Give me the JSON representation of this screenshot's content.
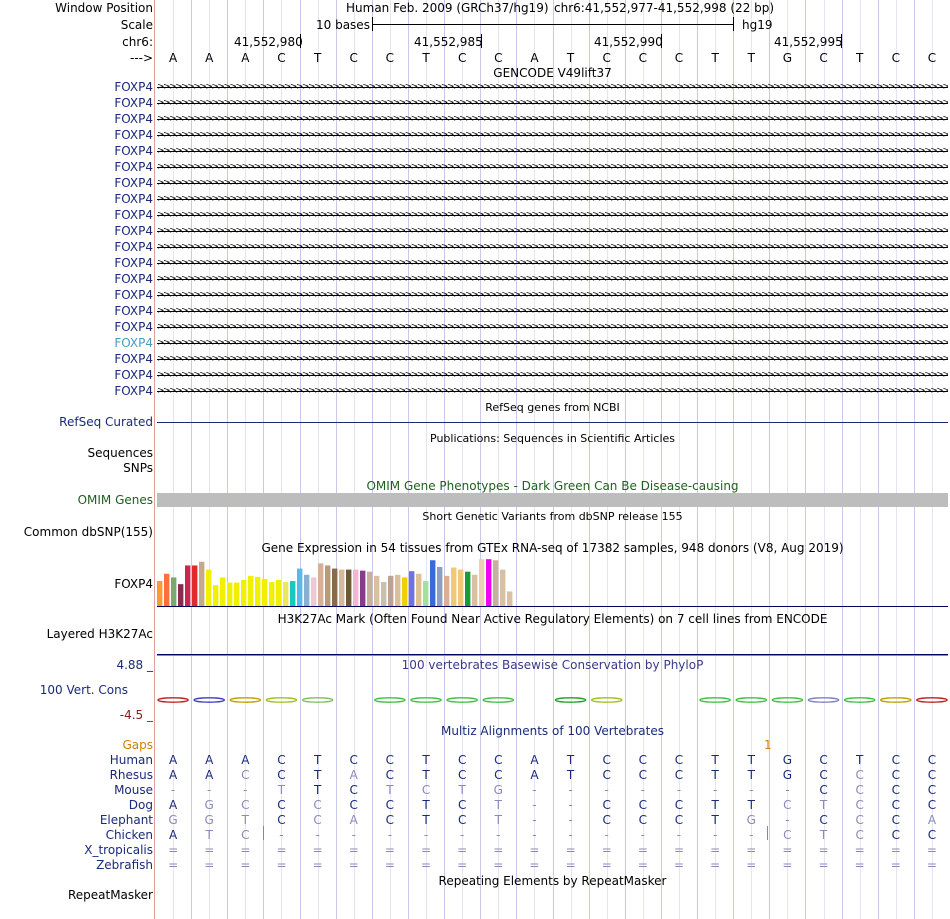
{
  "header": {
    "window_position_label": "Window Position",
    "assembly": "Human Feb. 2009 (GRCh37/hg19)",
    "position": "chr6:41,552,977-41,552,998 (22 bp)",
    "scale_label": "Scale",
    "scale_bases": "10 bases",
    "scale_db": "hg19",
    "chrom_label": "chr6:",
    "ticks": [
      "41,552,980",
      "41,552,985",
      "41,552,990",
      "41,552,995"
    ],
    "strand_label": "--->"
  },
  "sequence": [
    "A",
    "A",
    "A",
    "C",
    "T",
    "C",
    "C",
    "T",
    "C",
    "C",
    "A",
    "T",
    "C",
    "C",
    "C",
    "T",
    "T",
    "G",
    "C",
    "T",
    "C",
    "C"
  ],
  "gencode": {
    "title": "GENCODE V49lift37",
    "gene_labels": [
      "FOXP4",
      "FOXP4",
      "FOXP4",
      "FOXP4",
      "FOXP4",
      "FOXP4",
      "FOXP4",
      "FOXP4",
      "FOXP4",
      "FOXP4",
      "FOXP4",
      "FOXP4",
      "FOXP4",
      "FOXP4",
      "FOXP4",
      "FOXP4",
      "FOXP4",
      "FOXP4",
      "FOXP4",
      "FOXP4"
    ],
    "highlight_index": 16,
    "label_color": "#1a2a7a",
    "highlight_color": "#4a9ac0"
  },
  "refseq": {
    "title": "RefSeq genes from NCBI",
    "label": "RefSeq Curated"
  },
  "publications": {
    "title": "Publications: Sequences in Scientific Articles",
    "label1": "Sequences",
    "label2": "SNPs"
  },
  "omim": {
    "title": "OMIM Gene Phenotypes - Dark Green Can Be Disease-causing",
    "label": "OMIM Genes",
    "color": "#1f5f1f",
    "bar_color": "#bdbdbd"
  },
  "dbsnp": {
    "title": "Short Genetic Variants from dbSNP release 155",
    "label": "Common dbSNP(155)"
  },
  "gtex": {
    "title": "Gene Expression in 54 tissues from GTEx RNA-seq of 17382 samples, 948 donors (V8, Aug 2019)",
    "label": "FOXP4",
    "values": [
      0.48,
      0.62,
      0.55,
      0.42,
      0.78,
      0.78,
      0.85,
      0.7,
      0.4,
      0.55,
      0.45,
      0.45,
      0.5,
      0.58,
      0.56,
      0.52,
      0.46,
      0.5,
      0.46,
      0.48,
      0.72,
      0.6,
      0.55,
      0.82,
      0.78,
      0.72,
      0.7,
      0.7,
      0.7,
      0.68,
      0.66,
      0.58,
      0.46,
      0.58,
      0.6,
      0.55,
      0.67,
      0.62,
      0.48,
      0.88,
      0.75,
      0.58,
      0.74,
      0.7,
      0.66,
      0.6,
      0.9,
      0.9,
      0.88,
      0.7,
      0.28
    ],
    "colors": [
      "#ff9933",
      "#ff6f3a",
      "#7ca86c",
      "#8a2b4f",
      "#c8284c",
      "#e02a2a",
      "#c8a88a",
      "#f0f000",
      "#f0f000",
      "#f0f000",
      "#f0f000",
      "#f0f000",
      "#f0f000",
      "#f0f000",
      "#f0f000",
      "#f0f000",
      "#f0f000",
      "#f0f000",
      "#e8e85a",
      "#18c8c0",
      "#5ab8f0",
      "#8ab0d0",
      "#f0c8d0",
      "#d8b098",
      "#b89a7a",
      "#8a6a4a",
      "#d8b89a",
      "#6a5a3a",
      "#f0b8d0",
      "#8a3a8a",
      "#c8b0a0",
      "#d8c0a0",
      "#c8c0a8",
      "#c0a090",
      "#d8c098",
      "#f0d000",
      "#7070e0",
      "#e0c090",
      "#a0e0a0",
      "#3a6ad8",
      "#8aa0c0",
      "#d8b098",
      "#f0c878",
      "#f0c878",
      "#1a9a3a",
      "#d8c0a0",
      "#e8d0b0",
      "#f000f0",
      "#c8b0a0",
      "#d8c0a0",
      "#d8c0a0"
    ],
    "ymax": 1
  },
  "h3k27ac": {
    "title": "H3K27Ac Mark (Often Found Near Active Regulatory Elements) on 7 cell lines from ENCODE",
    "label": "Layered H3K27Ac",
    "color": "#000060"
  },
  "phylop": {
    "title": "100 vertebrates Basewise Conservation by PhyloP",
    "label": "100 Vert. Cons",
    "ymax": "4.88 _",
    "ymin": "-4.5 _",
    "title_color": "#3a3a8a"
  },
  "multiz": {
    "title": "Multiz Alignments of 100 Vertebrates",
    "gaps_label": "Gaps",
    "gaps_value": "1",
    "species": [
      {
        "name": "Human",
        "bases": [
          "A",
          "A",
          "A",
          "C",
          "T",
          "C",
          "C",
          "T",
          "C",
          "C",
          "A",
          "T",
          "C",
          "C",
          "C",
          "T",
          "T",
          "G",
          "C",
          "T",
          "C",
          "C"
        ],
        "same": [
          true,
          true,
          true,
          true,
          true,
          true,
          true,
          true,
          true,
          true,
          true,
          true,
          true,
          true,
          true,
          true,
          true,
          true,
          true,
          true,
          true,
          true
        ]
      },
      {
        "name": "Rhesus",
        "bases": [
          "A",
          "A",
          "C",
          "C",
          "T",
          "A",
          "C",
          "T",
          "C",
          "C",
          "A",
          "T",
          "C",
          "C",
          "C",
          "T",
          "T",
          "G",
          "C",
          "C",
          "C",
          "C"
        ],
        "same": [
          true,
          true,
          false,
          true,
          true,
          false,
          true,
          true,
          true,
          true,
          true,
          true,
          true,
          true,
          true,
          true,
          true,
          true,
          true,
          false,
          true,
          true
        ]
      },
      {
        "name": "Mouse",
        "bases": [
          "-",
          "-",
          "-",
          "T",
          "T",
          "C",
          "T",
          "C",
          "T",
          "G",
          "-",
          "-",
          "-",
          "-",
          "-",
          "-",
          "-",
          "-",
          "C",
          "C",
          "C",
          "C"
        ],
        "same": [
          false,
          false,
          false,
          false,
          true,
          true,
          false,
          false,
          false,
          false,
          false,
          false,
          false,
          false,
          false,
          false,
          false,
          false,
          true,
          false,
          true,
          true
        ]
      },
      {
        "name": "Dog",
        "bases": [
          "A",
          "G",
          "C",
          "C",
          "C",
          "C",
          "C",
          "T",
          "C",
          "T",
          "-",
          "-",
          "C",
          "C",
          "C",
          "T",
          "T",
          "C",
          "T",
          "C",
          "C",
          "C"
        ],
        "same": [
          true,
          false,
          false,
          true,
          false,
          true,
          true,
          true,
          true,
          false,
          false,
          false,
          true,
          true,
          true,
          true,
          true,
          false,
          false,
          false,
          true,
          true
        ]
      },
      {
        "name": "Elephant",
        "bases": [
          "G",
          "G",
          "T",
          "C",
          "C",
          "A",
          "C",
          "T",
          "C",
          "T",
          "-",
          "-",
          "C",
          "C",
          "C",
          "T",
          "G",
          "-",
          "C",
          "C",
          "C",
          "A"
        ],
        "same": [
          false,
          false,
          false,
          true,
          false,
          false,
          true,
          true,
          true,
          false,
          false,
          false,
          true,
          true,
          true,
          true,
          false,
          false,
          true,
          false,
          true,
          false
        ]
      },
      {
        "name": "Chicken",
        "bases": [
          "A",
          "T",
          "C",
          "-",
          "-",
          "-",
          "-",
          "-",
          "-",
          "-",
          "-",
          "-",
          "-",
          "-",
          "-",
          "-",
          "-",
          "C",
          "T",
          "C",
          "C",
          "C"
        ],
        "same": [
          true,
          false,
          false,
          false,
          false,
          false,
          false,
          false,
          false,
          false,
          false,
          false,
          false,
          false,
          false,
          false,
          false,
          false,
          false,
          false,
          true,
          true
        ]
      },
      {
        "name": "X_tropicalis",
        "bases": [
          "=",
          "=",
          "=",
          "=",
          "=",
          "=",
          "=",
          "=",
          "=",
          "=",
          "=",
          "=",
          "=",
          "=",
          "=",
          "=",
          "=",
          "=",
          "=",
          "=",
          "=",
          "="
        ],
        "same": [
          false,
          false,
          false,
          false,
          false,
          false,
          false,
          false,
          false,
          false,
          false,
          false,
          false,
          false,
          false,
          false,
          false,
          false,
          false,
          false,
          false,
          false
        ]
      },
      {
        "name": "Zebrafish",
        "bases": [
          "=",
          "=",
          "=",
          "=",
          "=",
          "=",
          "=",
          "=",
          "=",
          "=",
          "=",
          "=",
          "=",
          "=",
          "=",
          "=",
          "=",
          "=",
          "=",
          "=",
          "=",
          "="
        ],
        "same": [
          false,
          false,
          false,
          false,
          false,
          false,
          false,
          false,
          false,
          false,
          false,
          false,
          false,
          false,
          false,
          false,
          false,
          false,
          false,
          false,
          false,
          false
        ]
      }
    ],
    "species_color": "#1a2a7a",
    "same_color": "#1a2a7a",
    "diff_color": "#8a8ab8"
  },
  "repeatmasker": {
    "title": "Repeating Elements by RepeatMasker",
    "label": "RepeatMasker"
  },
  "colors": {
    "green_label": "#1f5f1f",
    "navy": "#1a2a7a",
    "gaps": "#d08000",
    "maroon": "#8a1a1a"
  }
}
